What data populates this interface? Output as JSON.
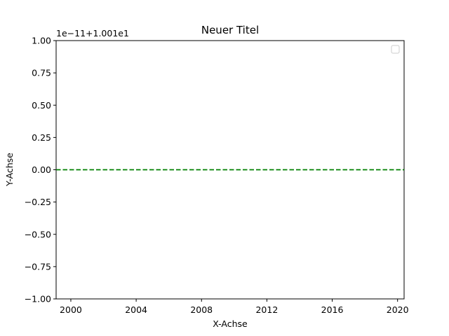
{
  "chart_data": {
    "type": "line",
    "title": "Neuer Titel",
    "xlabel": "X-Achse",
    "ylabel": "Y-Achse",
    "offset_text": "1e−11+1.001e1",
    "xlim": [
      1999.1,
      2020.4
    ],
    "ylim": [
      -1.0,
      1.0
    ],
    "x_ticks": [
      2000,
      2004,
      2008,
      2012,
      2016,
      2020
    ],
    "y_ticks": [
      1.0,
      0.75,
      0.5,
      0.25,
      0.0,
      -0.25,
      -0.5,
      -0.75,
      -1.0
    ],
    "y_tick_labels": [
      "1.00",
      "0.75",
      "0.50",
      "0.25",
      "0.00",
      "−0.25",
      "−0.50",
      "−0.75",
      "−1.00"
    ],
    "grid": false,
    "legend": {
      "position": "top-right",
      "entries": []
    },
    "series": [
      {
        "x": [
          1999.1,
          2020.4
        ],
        "values": [
          0.0,
          0.0
        ],
        "color": "#008000",
        "style": "dashed"
      }
    ]
  }
}
